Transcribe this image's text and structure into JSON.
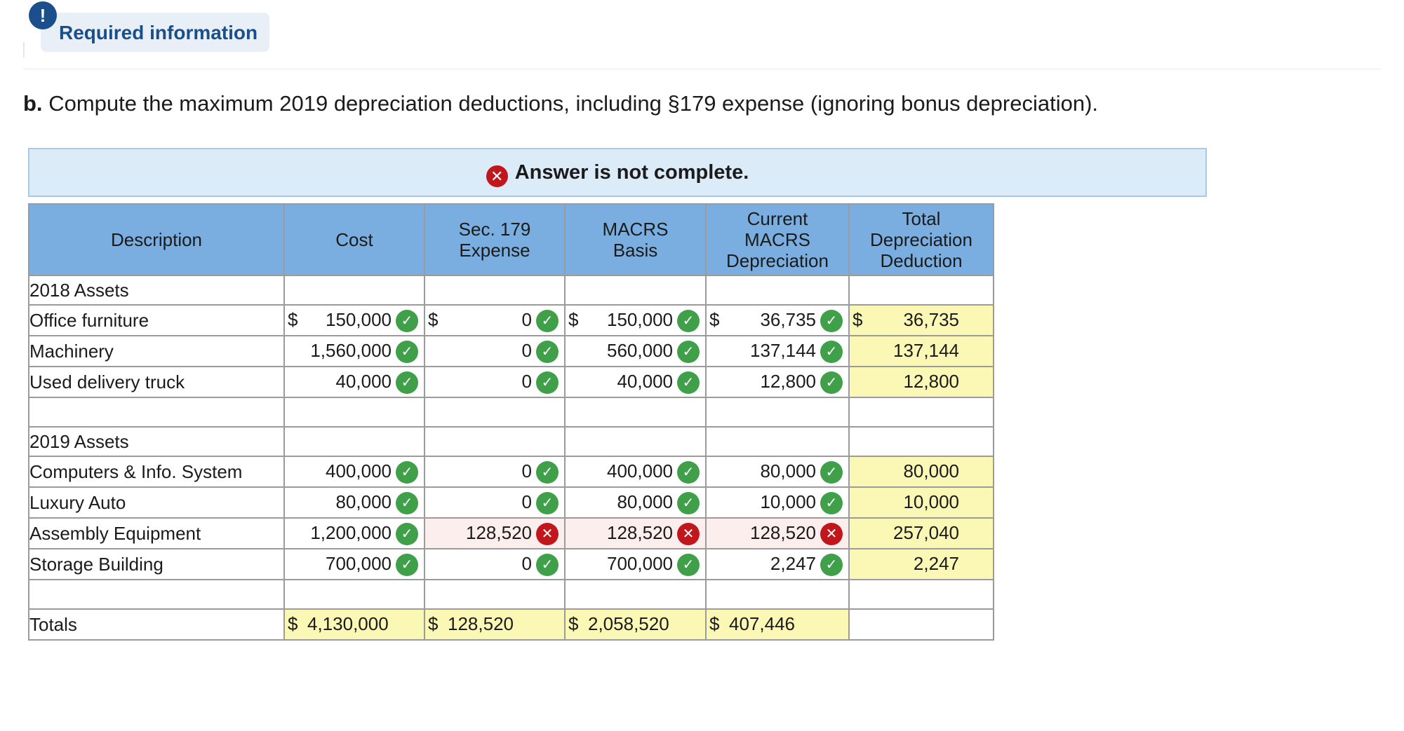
{
  "badge": {
    "icon": "!",
    "label": "Required information"
  },
  "question": {
    "prefix": "b.",
    "text": "Compute the maximum 2019 depreciation deductions, including §179 expense (ignoring bonus depreciation)."
  },
  "banner": {
    "icon": "✕",
    "text": "Answer is not complete."
  },
  "table": {
    "headers": [
      "Description",
      "Cost",
      "Sec. 179 Expense",
      "MACRS Basis",
      "Current MACRS Depreciation",
      "Total Depreciation Deduction"
    ],
    "headers_lines": {
      "desc": "Description",
      "cost": "Cost",
      "sec1": "Sec. 179",
      "sec2": "Expense",
      "basis1": "MACRS",
      "basis2": "Basis",
      "dep1": "Current",
      "dep2": "MACRS",
      "dep3": "Depreciation",
      "tot1": "Total",
      "tot2": "Depreciation",
      "tot3": "Deduction"
    },
    "section_2018": "2018 Assets",
    "section_2019": "2019 Assets",
    "currency": "$",
    "rows": [
      {
        "description": "Office furniture",
        "cost": "150,000",
        "sec179": "0",
        "basis": "150,000",
        "depreciation": "36,735",
        "total": "36,735",
        "status": {
          "cost": "correct",
          "sec179": "correct",
          "basis": "correct",
          "depreciation": "correct"
        }
      },
      {
        "description": "Machinery",
        "cost": "1,560,000",
        "sec179": "0",
        "basis": "560,000",
        "depreciation": "137,144",
        "total": "137,144",
        "status": {
          "cost": "correct",
          "sec179": "correct",
          "basis": "correct",
          "depreciation": "correct"
        }
      },
      {
        "description": "Used delivery truck",
        "cost": "40,000",
        "sec179": "0",
        "basis": "40,000",
        "depreciation": "12,800",
        "total": "12,800",
        "status": {
          "cost": "correct",
          "sec179": "correct",
          "basis": "correct",
          "depreciation": "correct"
        }
      },
      {
        "description": "Computers & Info. System",
        "cost": "400,000",
        "sec179": "0",
        "basis": "400,000",
        "depreciation": "80,000",
        "total": "80,000",
        "status": {
          "cost": "correct",
          "sec179": "correct",
          "basis": "correct",
          "depreciation": "correct"
        }
      },
      {
        "description": "Luxury Auto",
        "cost": "80,000",
        "sec179": "0",
        "basis": "80,000",
        "depreciation": "10,000",
        "total": "10,000",
        "status": {
          "cost": "correct",
          "sec179": "correct",
          "basis": "correct",
          "depreciation": "correct"
        }
      },
      {
        "description": "Assembly Equipment",
        "cost": "1,200,000",
        "sec179": "128,520",
        "basis": "128,520",
        "depreciation": "128,520",
        "total": "257,040",
        "status": {
          "cost": "correct",
          "sec179": "incorrect",
          "basis": "incorrect",
          "depreciation": "incorrect"
        }
      },
      {
        "description": "Storage Building",
        "cost": "700,000",
        "sec179": "0",
        "basis": "700,000",
        "depreciation": "2,247",
        "total": "2,247",
        "status": {
          "cost": "correct",
          "sec179": "correct",
          "basis": "correct",
          "depreciation": "correct"
        }
      }
    ],
    "totals": {
      "label": "Totals",
      "cost": "4,130,000",
      "sec179": "128,520",
      "basis": "2,058,520",
      "depreciation": "407,446",
      "total": ""
    }
  },
  "icons": {
    "correct": "✓",
    "incorrect": "✕"
  },
  "colors": {
    "header_bg": "#7aaee0",
    "yellow_cell": "#fbf8b6",
    "pink_cell": "#fdeeee",
    "correct": "#3fa049",
    "incorrect": "#c0161c",
    "banner_bg": "#dcebf8"
  }
}
